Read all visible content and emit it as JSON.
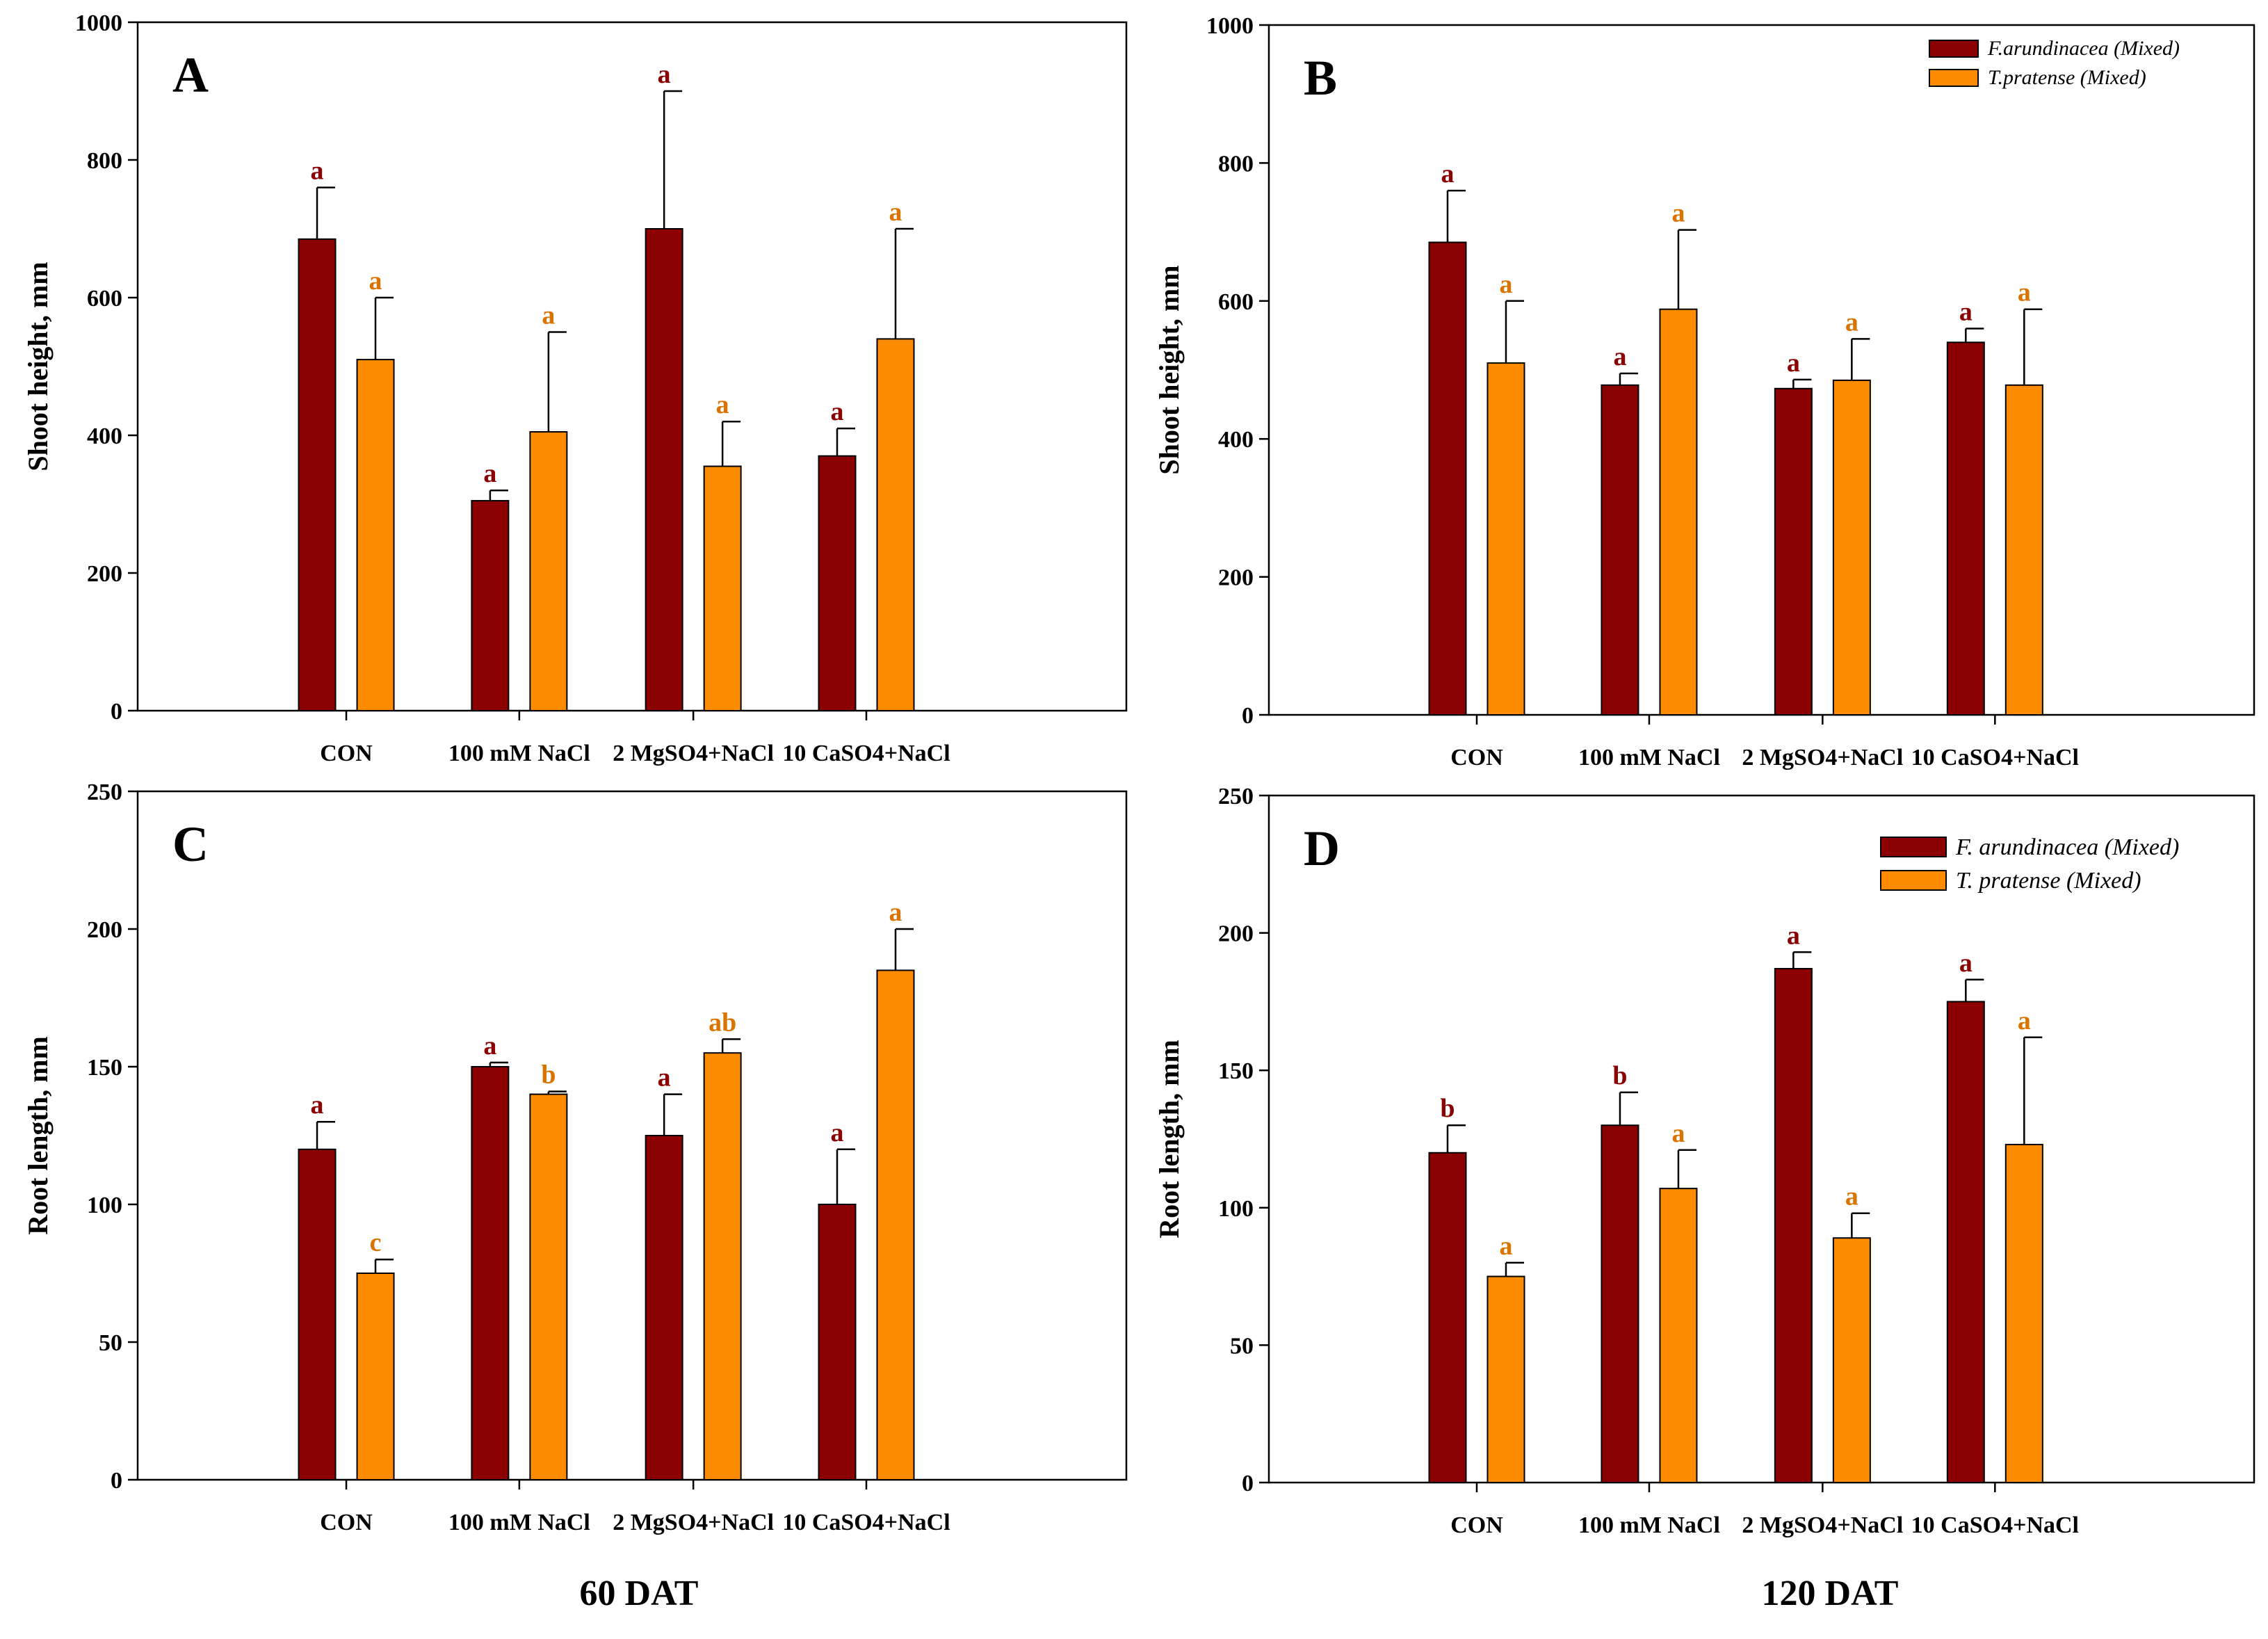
{
  "colors": {
    "fa": "#8b0000",
    "tp": "#ff8c00",
    "fa_label": "#8b0000",
    "tp_label": "#d97400"
  },
  "footer": {
    "left": "60 DAT",
    "right": "120 DAT"
  },
  "chart_data": [
    {
      "panel": "A",
      "type": "bar",
      "ylabel": "Shoot height, mm",
      "ylim": [
        0,
        1000
      ],
      "yticks": [
        0,
        200,
        400,
        600,
        800,
        1000
      ],
      "categories": [
        "CON",
        "100 mM NaCl",
        "2 MgSO4+NaCl",
        "10 CaSO4+NaCl"
      ],
      "legend": null,
      "series": [
        {
          "name": "F.arundinacea (Mixed)",
          "values": [
            685,
            305,
            700,
            370
          ],
          "errors": [
            75,
            15,
            200,
            40
          ],
          "letters": [
            "a",
            "a",
            "a",
            "a"
          ]
        },
        {
          "name": "T.pratense (Mixed)",
          "values": [
            510,
            405,
            355,
            540
          ],
          "errors": [
            90,
            145,
            65,
            160
          ],
          "letters": [
            "a",
            "a",
            "a",
            "a"
          ]
        }
      ]
    },
    {
      "panel": "B",
      "type": "bar",
      "ylabel": "Shoot height, mm",
      "ylim": [
        0,
        1000
      ],
      "yticks": [
        0,
        200,
        400,
        600,
        800,
        1000
      ],
      "categories": [
        "CON",
        "100 mM NaCl",
        "2 MgSO4+NaCl",
        "10 CaSO4+NaCl"
      ],
      "legend": [
        "F.arundinacea (Mixed)",
        "T.pratense (Mixed)"
      ],
      "series": [
        {
          "name": "F.arundinacea (Mixed)",
          "values": [
            685,
            478,
            473,
            540
          ],
          "errors": [
            75,
            17,
            13,
            20
          ],
          "letters": [
            "a",
            "a",
            "a",
            "a"
          ]
        },
        {
          "name": "T.pratense (Mixed)",
          "values": [
            510,
            588,
            485,
            478
          ],
          "errors": [
            90,
            115,
            60,
            110
          ],
          "letters": [
            "a",
            "a",
            "a",
            "a"
          ]
        }
      ]
    },
    {
      "panel": "C",
      "type": "bar",
      "ylabel": "Root length, mm",
      "ylim": [
        0,
        250
      ],
      "yticks": [
        0,
        50,
        100,
        150,
        200,
        250
      ],
      "categories": [
        "CON",
        "100 mM NaCl",
        "2 MgSO4+NaCl",
        "10 CaSO4+NaCl"
      ],
      "legend": null,
      "series": [
        {
          "name": "F.arundinacea (Mixed)",
          "values": [
            120,
            150,
            125,
            100
          ],
          "errors": [
            10,
            1.5,
            15,
            20
          ],
          "letters": [
            "a",
            "a",
            "a",
            "a"
          ]
        },
        {
          "name": "T.pratense (Mixed)",
          "values": [
            75,
            140,
            155,
            185
          ],
          "errors": [
            5,
            1,
            5,
            15
          ],
          "letters": [
            "c",
            "b",
            "ab",
            "a"
          ]
        }
      ]
    },
    {
      "panel": "D",
      "type": "bar",
      "ylabel": "Root length, mm",
      "ylim": [
        0,
        250
      ],
      "yticks": [
        0,
        50,
        100,
        150,
        200,
        250
      ],
      "categories": [
        "CON",
        "100 mM NaCl",
        "2 MgSO4+NaCl",
        "10 CaSO4+NaCl"
      ],
      "legend": [
        "F. arundinacea (Mixed)",
        "T. pratense (Mixed)"
      ],
      "series": [
        {
          "name": "F. arundinacea (Mixed)",
          "values": [
            120,
            130,
            187,
            175
          ],
          "errors": [
            10,
            12,
            6,
            8
          ],
          "letters": [
            "b",
            "b",
            "a",
            "a"
          ]
        },
        {
          "name": "T. pratense (Mixed)",
          "values": [
            75,
            107,
            89,
            123
          ],
          "errors": [
            5,
            14,
            9,
            39
          ],
          "letters": [
            "a",
            "a",
            "a",
            "a"
          ]
        }
      ]
    }
  ]
}
